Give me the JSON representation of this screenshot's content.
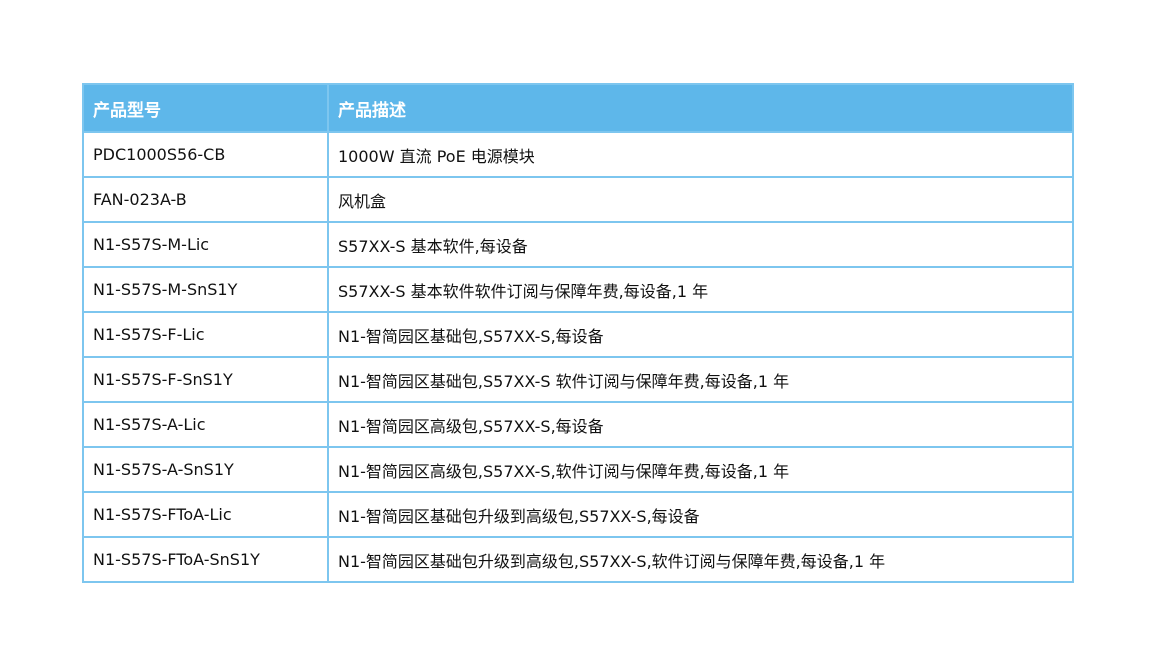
{
  "table": {
    "headers": [
      "产品型号",
      "产品描述"
    ],
    "rows": [
      [
        "PDC1000S56-CB",
        "1000W 直流 PoE 电源模块"
      ],
      [
        "FAN-023A-B",
        "风机盒"
      ],
      [
        "N1-S57S-M-Lic",
        "S57XX-S 基本软件,每设备"
      ],
      [
        "N1-S57S-M-SnS1Y",
        "S57XX-S 基本软件软件订阅与保障年费,每设备,1 年"
      ],
      [
        "N1-S57S-F-Lic",
        "N1-智简园区基础包,S57XX-S,每设备"
      ],
      [
        "N1-S57S-F-SnS1Y",
        "N1-智简园区基础包,S57XX-S 软件订阅与保障年费,每设备,1 年"
      ],
      [
        "N1-S57S-A-Lic",
        "N1-智简园区高级包,S57XX-S,每设备"
      ],
      [
        "N1-S57S-A-SnS1Y",
        "N1-智简园区高级包,S57XX-S,软件订阅与保障年费,每设备,1 年"
      ],
      [
        "N1-S57S-FToA-Lic",
        "N1-智简园区基础包升级到高级包,S57XX-S,每设备"
      ],
      [
        "N1-S57S-FToA-SnS1Y",
        "N1-智简园区基础包升级到高级包,S57XX-S,软件订阅与保障年费,每设备,1 年"
      ]
    ]
  },
  "colors": {
    "header_bg": "#5eb7ea",
    "border": "#7dc6ef"
  }
}
